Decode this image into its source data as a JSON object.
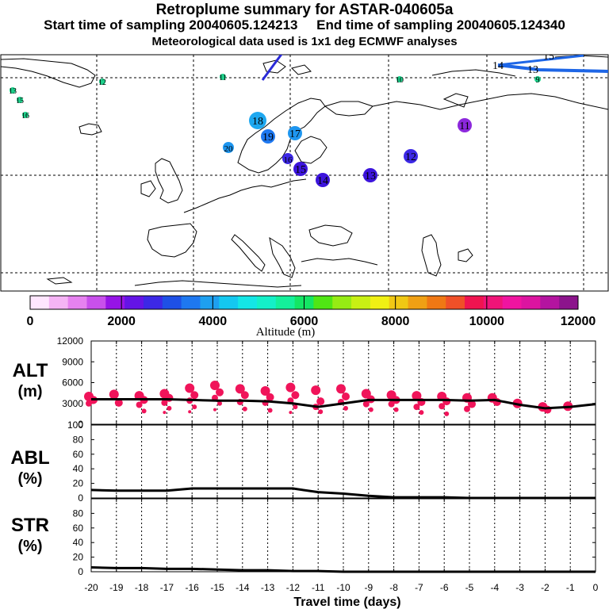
{
  "header": {
    "title": "Retroplume summary for ASTAR-040605a",
    "start_label": "Start time of sampling 20040605.124213",
    "end_label": "End time of sampling 20040605.124340",
    "met_label": "Meteorological data used is 1x1 deg ECMWF analyses"
  },
  "colors": {
    "track_line": "#2a2ad8",
    "track_line_ne": "#1e66e6",
    "alt_points": "#f0145a",
    "text": "#000000"
  },
  "map": {
    "markers": [
      {
        "label": "18",
        "color": "#1ea8f0",
        "size": "large"
      },
      {
        "label": "19",
        "color": "#1e78f0",
        "size": "medium"
      },
      {
        "label": "17",
        "color": "#1e96f0",
        "size": "medium"
      },
      {
        "label": "20",
        "color": "#1e96f0",
        "size": "small"
      },
      {
        "label": "16",
        "color": "#3c28e6",
        "size": "small"
      },
      {
        "label": "15",
        "color": "#3c14dc",
        "size": "medium"
      },
      {
        "label": "14",
        "color": "#3c14dc",
        "size": "medium"
      },
      {
        "label": "13",
        "color": "#3c14dc",
        "size": "medium"
      },
      {
        "label": "12",
        "color": "#3c28e6",
        "size": "medium"
      },
      {
        "label": "11",
        "color": "#8c28dc",
        "size": "medium"
      }
    ],
    "small_labels": [
      {
        "label": "13",
        "color": "#1ed28c"
      },
      {
        "label": "15",
        "color": "#1ed28c"
      },
      {
        "label": "16",
        "color": "#1ed28c"
      },
      {
        "label": "12",
        "color": "#1ed28c"
      },
      {
        "label": "11",
        "color": "#1ed28c"
      },
      {
        "label": "10",
        "color": "#1ed28c"
      },
      {
        "label": "9",
        "color": "#1ed28c"
      }
    ],
    "plain_labels": [
      "14",
      "13",
      "15"
    ]
  },
  "colorbar": {
    "colors": [
      "#ffe6ff",
      "#f5b4f5",
      "#e682f0",
      "#c850eb",
      "#9614e6",
      "#6414e6",
      "#3c28e6",
      "#1e50e6",
      "#1e78f0",
      "#1ea0f0",
      "#14c8f0",
      "#14e6e6",
      "#14f0c8",
      "#14f09b",
      "#14e664",
      "#50e614",
      "#96eb14",
      "#c8f014",
      "#f0f014",
      "#f0c814",
      "#f0a014",
      "#f07814",
      "#f05028",
      "#f01450",
      "#f01478",
      "#f014a0",
      "#dc14a0",
      "#b414a0",
      "#8c148c"
    ],
    "ticks": [
      "0",
      "2000",
      "4000",
      "6000",
      "8000",
      "10000",
      "12000"
    ],
    "label": "Altitude (m)"
  },
  "panels": {
    "alt": {
      "label_line1": "ALT",
      "label_line2": "(m)",
      "ticks": [
        "12000",
        "9000",
        "6000",
        "3000",
        "0"
      ]
    },
    "abl": {
      "label_line1": "ABL",
      "label_line2": "(%)",
      "ticks": [
        "100",
        "80",
        "60",
        "40",
        "20",
        "0"
      ]
    },
    "str": {
      "label_line1": "STR",
      "label_line2": "(%)",
      "ticks": [
        "80",
        "60",
        "40",
        "20",
        "0"
      ]
    }
  },
  "chart_data": {
    "type": "line",
    "title": "Retroplume summary for ASTAR-040605a",
    "xlabel": "Travel time (days)",
    "xlim": [
      -20,
      0
    ],
    "x_tick_labels": [
      "-20",
      "-19",
      "-18",
      "-17",
      "-16",
      "-15",
      "-14",
      "-13",
      "-12",
      "-11",
      "-10",
      "-9",
      "-8",
      "-7",
      "-6",
      "-5",
      "-4",
      "-3",
      "-2",
      "-1",
      "0"
    ],
    "series": [
      {
        "name": "ALT",
        "ylabel": "ALT (m)",
        "ylim": [
          0,
          12000
        ],
        "x": [
          -20,
          -19,
          -18,
          -17,
          -16,
          -15,
          -14,
          -13,
          -12,
          -11,
          -10,
          -9,
          -8,
          -7,
          -6,
          -5,
          -4,
          -3,
          -2,
          -1,
          0
        ],
        "values": [
          3600,
          3600,
          3600,
          3600,
          3500,
          3400,
          3400,
          3300,
          3000,
          2500,
          3000,
          3500,
          3500,
          3500,
          3500,
          3400,
          3500,
          2800,
          2300,
          2500,
          2900
        ]
      },
      {
        "name": "ABL",
        "ylabel": "ABL (%)",
        "ylim": [
          0,
          100
        ],
        "x": [
          -20,
          -19,
          -18,
          -17,
          -16,
          -15,
          -14,
          -13,
          -12,
          -11,
          -10,
          -9,
          -8,
          -7,
          -6,
          -5,
          -4,
          -3,
          -2,
          -1,
          0
        ],
        "values": [
          11,
          10,
          10,
          10,
          13,
          13,
          13,
          13,
          13,
          8,
          6,
          3,
          1,
          1,
          1,
          0,
          0,
          0,
          0,
          0,
          0
        ]
      },
      {
        "name": "STR",
        "ylabel": "STR (%)",
        "ylim": [
          0,
          100
        ],
        "x": [
          -20,
          -19,
          -18,
          -17,
          -16,
          -15,
          -14,
          -13,
          -12,
          -11,
          -10,
          -9,
          -8,
          -7,
          -6,
          -5,
          -4,
          -3,
          -2,
          -1,
          0
        ],
        "values": [
          6,
          5,
          5,
          4,
          4,
          3,
          2,
          2,
          1,
          1,
          0,
          0,
          0,
          0,
          0,
          0,
          0,
          0,
          0,
          0,
          0
        ]
      }
    ],
    "alt_scatter": [
      {
        "x": -20,
        "ys": [
          4000,
          3500,
          3000
        ]
      },
      {
        "x": -19,
        "ys": [
          4300,
          3100
        ]
      },
      {
        "x": -18,
        "ys": [
          4100,
          3500,
          2800,
          1900
        ]
      },
      {
        "x": -17,
        "ys": [
          4400,
          3800,
          3100,
          2300,
          1700
        ]
      },
      {
        "x": -16,
        "ys": [
          5200,
          4200,
          3400,
          2500,
          1800
        ]
      },
      {
        "x": -15,
        "ys": [
          5600,
          4600,
          3800,
          3000,
          2100
        ]
      },
      {
        "x": -14,
        "ys": [
          5100,
          4200,
          3200,
          2200
        ]
      },
      {
        "x": -13,
        "ys": [
          4800,
          3900,
          3100,
          2000
        ]
      },
      {
        "x": -12,
        "ys": [
          5300,
          4200,
          3400,
          2500,
          1700
        ]
      },
      {
        "x": -11,
        "ys": [
          4900,
          3300,
          2500,
          1800
        ]
      },
      {
        "x": -10,
        "ys": [
          5100,
          4000,
          3200,
          2300
        ]
      },
      {
        "x": -9,
        "ys": [
          4400,
          3600,
          2900,
          2100
        ]
      },
      {
        "x": -8,
        "ys": [
          4200,
          3500,
          2900,
          2100
        ]
      },
      {
        "x": -7,
        "ys": [
          4100,
          3200,
          2500,
          1700
        ]
      },
      {
        "x": -6,
        "ys": [
          4000,
          3300,
          2600,
          1500
        ]
      },
      {
        "x": -5,
        "ys": [
          3800,
          2900,
          2200
        ]
      },
      {
        "x": -4,
        "ys": [
          3800,
          3200
        ]
      },
      {
        "x": -3,
        "ys": [
          3000
        ]
      },
      {
        "x": -2,
        "ys": [
          2500,
          2100
        ]
      },
      {
        "x": -1,
        "ys": [
          2600
        ]
      }
    ]
  }
}
